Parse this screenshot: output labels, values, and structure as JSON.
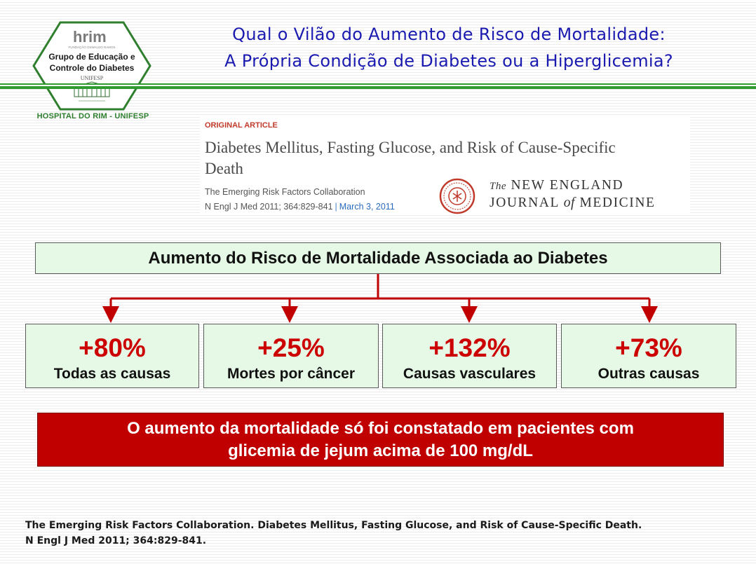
{
  "logo": {
    "brand": "hrim",
    "brand_sub": "FUNDAÇÃO OSWALDO RAMOS",
    "group_line1": "Grupo de Educação e",
    "group_line2": "Controle do Diabetes",
    "unifesp": "UNIFESP",
    "caption": "HOSPITAL DO RIM - UNIFESP"
  },
  "title": {
    "line1": "Qual o Vilão do Aumento de Risco de Mortalidade:",
    "line2": "A Própria Condição de Diabetes ou a Hiperglicemia?"
  },
  "article": {
    "label": "ORIGINAL ARTICLE",
    "title_line1": "Diabetes Mellitus, Fasting Glucose, and Risk of Cause-Specific",
    "title_line2": "Death",
    "authors": "The Emerging Risk Factors Collaboration",
    "citation": "N Engl J Med 2011; 364:829-841",
    "date": "March 3, 2011",
    "journal_the": "The",
    "journal_line1_rest": "NEW ENGLAND",
    "journal_line2_a": "JOURNAL",
    "journal_line2_of": "of",
    "journal_line2_b": "MEDICINE"
  },
  "main_box": {
    "text": "Aumento do Risco de Mortalidade Associada ao Diabetes"
  },
  "stats": [
    {
      "value": "+80%",
      "label": "Todas as causas"
    },
    {
      "value": "+25%",
      "label": "Mortes por câncer"
    },
    {
      "value": "+132%",
      "label": "Causas vasculares"
    },
    {
      "value": "+73%",
      "label": "Outras causas"
    }
  ],
  "conclusion": {
    "line1": "O aumento da mortalidade só foi constatado em pacientes com",
    "line2": "glicemia de jejum acima de 100 mg/dL"
  },
  "reference": {
    "line1": "The Emerging Risk Factors Collaboration. Diabetes Mellitus, Fasting Glucose, and Risk of Cause-Specific Death.",
    "line2": "N Engl J Med 2011; 364:829-841."
  },
  "colors": {
    "title_blue": "#1a1ab0",
    "logo_green": "#2f7f2f",
    "rule_green": "#2f9a2f",
    "box_green": "#e6f8e6",
    "stat_red": "#cc0000",
    "connector_red": "#c00000",
    "conclusion_red": "#c00000"
  }
}
